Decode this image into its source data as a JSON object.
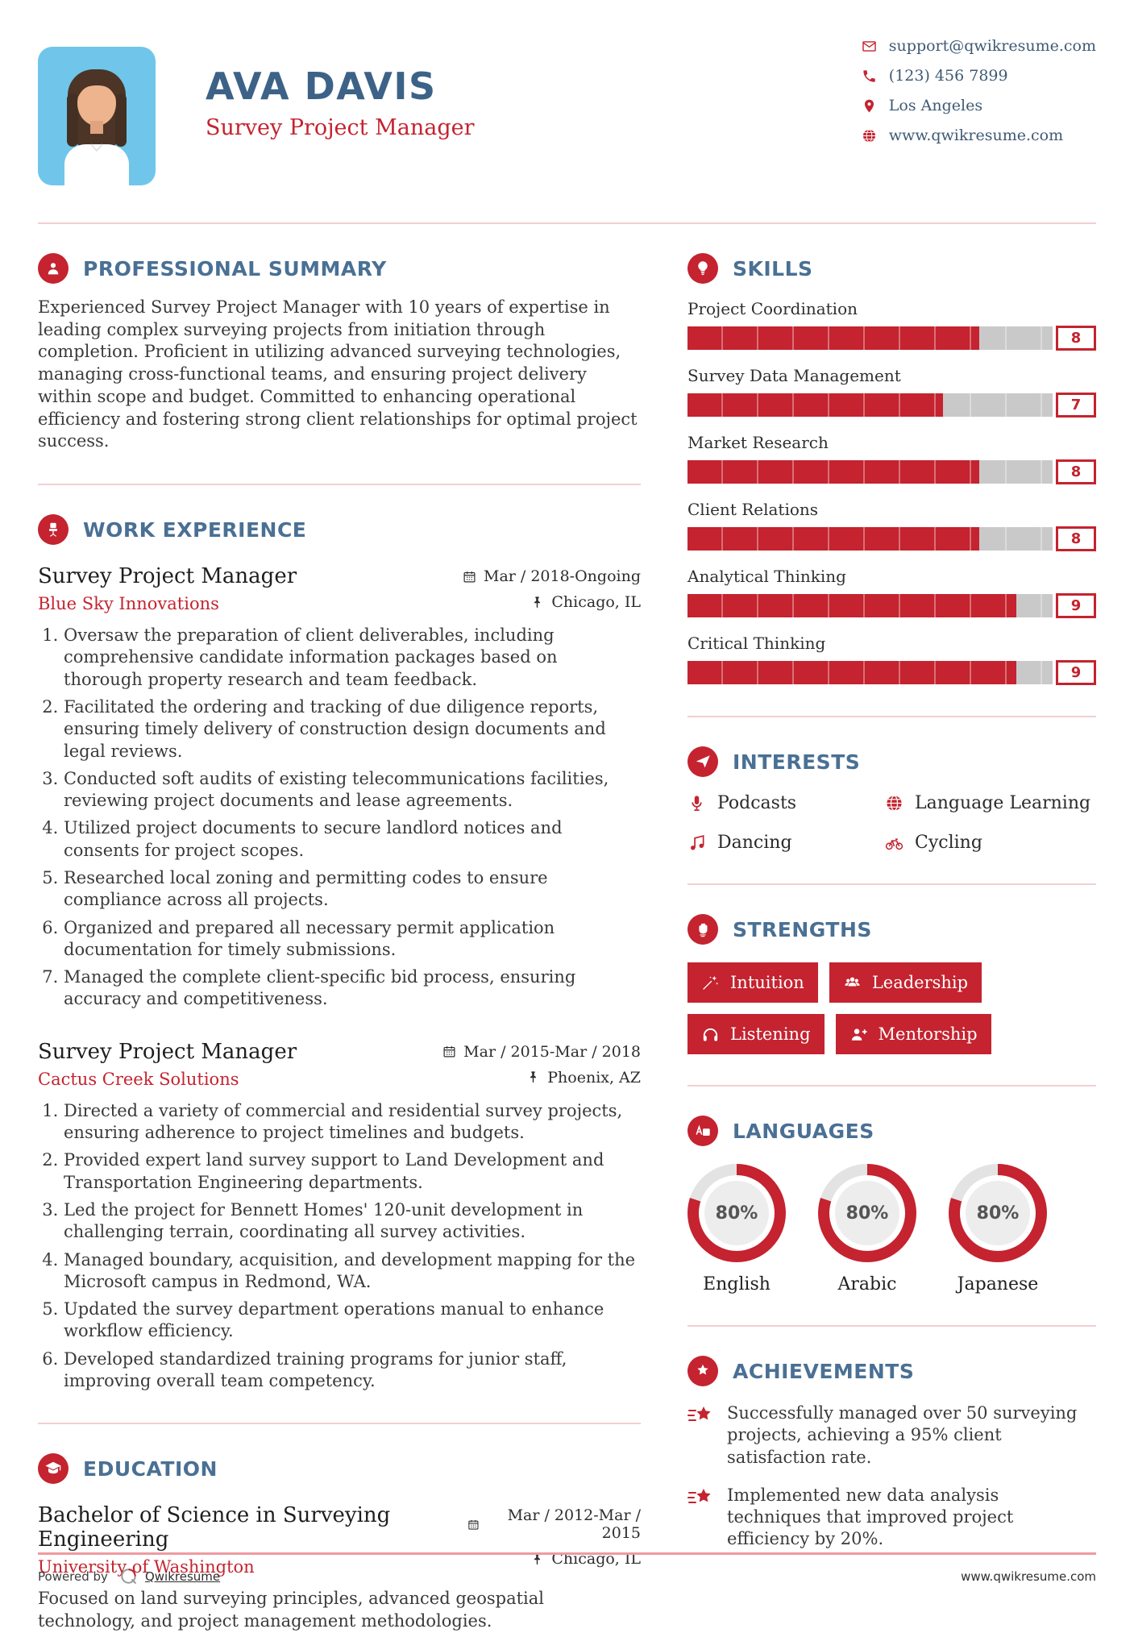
{
  "colors": {
    "accent": "#c4232f",
    "heading": "#4a7094",
    "name": "#3d6287",
    "body": "#3a3a3a",
    "track": "#c9c9c9",
    "ring_rest": "#e3e3e3",
    "divider": "#f3ced1",
    "photo_bg": "#6fc6ea"
  },
  "header": {
    "name": "AVA DAVIS",
    "title": "Survey Project Manager",
    "contacts": [
      {
        "icon": "mail-icon",
        "text": "support@qwikresume.com"
      },
      {
        "icon": "phone-icon",
        "text": "(123) 456 7899"
      },
      {
        "icon": "location-icon",
        "text": "Los Angeles"
      },
      {
        "icon": "globe-icon",
        "text": "www.qwikresume.com"
      }
    ]
  },
  "summary": {
    "heading": "PROFESSIONAL SUMMARY",
    "text": "Experienced Survey Project Manager with 10 years of expertise in leading complex surveying projects from initiation through completion. Proficient in utilizing advanced surveying technologies, managing cross-functional teams, and ensuring project delivery within scope and budget. Committed to enhancing operational efficiency and fostering strong client relationships for optimal project success."
  },
  "work": {
    "heading": "WORK EXPERIENCE",
    "jobs": [
      {
        "title": "Survey Project Manager",
        "company": "Blue Sky Innovations",
        "date": "Mar / 2018-Ongoing",
        "location": "Chicago, IL",
        "bullets": [
          "Oversaw the preparation of client deliverables, including comprehensive candidate information packages based on thorough property research and team feedback.",
          "Facilitated the ordering and tracking of due diligence reports, ensuring timely delivery of construction design documents and legal reviews.",
          "Conducted soft audits of existing telecommunications facilities, reviewing project documents and lease agreements.",
          "Utilized project documents to secure landlord notices and consents for project scopes.",
          "Researched local zoning and permitting codes to ensure compliance across all projects.",
          "Organized and prepared all necessary permit application documentation for timely submissions.",
          "Managed the complete client-specific bid process, ensuring accuracy and competitiveness."
        ]
      },
      {
        "title": "Survey Project Manager",
        "company": "Cactus Creek Solutions",
        "date": "Mar / 2015-Mar / 2018",
        "location": "Phoenix, AZ",
        "bullets": [
          "Directed a variety of commercial and residential survey projects, ensuring adherence to project timelines and budgets.",
          "Provided expert land survey support to Land Development and Transportation Engineering departments.",
          "Led the project for Bennett Homes' 120-unit development in challenging terrain, coordinating all survey activities.",
          "Managed boundary, acquisition, and development mapping for the Microsoft campus in Redmond, WA.",
          "Updated the survey department operations manual to enhance workflow efficiency.",
          "Developed standardized training programs for junior staff, improving overall team competency."
        ]
      }
    ]
  },
  "education": {
    "heading": "EDUCATION",
    "degree": "Bachelor of Science in Surveying Engineering",
    "school": "University of Washington",
    "date": "Mar / 2012-Mar / 2015",
    "location": "Chicago, IL",
    "description": "Focused on land surveying principles, advanced geospatial technology, and project management methodologies."
  },
  "skills": {
    "heading": "SKILLS",
    "scale_max": 10,
    "items": [
      {
        "label": "Project Coordination",
        "value": "8",
        "percent": 80
      },
      {
        "label": "Survey Data Management",
        "value": "7",
        "percent": 70
      },
      {
        "label": "Market Research",
        "value": "8",
        "percent": 80
      },
      {
        "label": "Client Relations",
        "value": "8",
        "percent": 80
      },
      {
        "label": "Analytical Thinking",
        "value": "9",
        "percent": 90
      },
      {
        "label": "Critical Thinking",
        "value": "9",
        "percent": 90
      }
    ]
  },
  "interests": {
    "heading": "INTERESTS",
    "items": [
      {
        "icon": "microphone-icon",
        "label": "Podcasts"
      },
      {
        "icon": "globe-icon",
        "label": "Language Learning"
      },
      {
        "icon": "music-note-icon",
        "label": "Dancing"
      },
      {
        "icon": "bicycle-icon",
        "label": "Cycling"
      }
    ]
  },
  "strengths": {
    "heading": "STRENGTHS",
    "items": [
      {
        "icon": "magic-wand-icon",
        "label": "Intuition"
      },
      {
        "icon": "users-icon",
        "label": "Leadership"
      },
      {
        "icon": "headphones-icon",
        "label": "Listening"
      },
      {
        "icon": "user-plus-icon",
        "label": "Mentorship"
      }
    ]
  },
  "languages": {
    "heading": "LANGUAGES",
    "items": [
      {
        "label": "English",
        "percent_label": "80%",
        "value": 80
      },
      {
        "label": "Arabic",
        "percent_label": "80%",
        "value": 80
      },
      {
        "label": "Japanese",
        "percent_label": "80%",
        "value": 80
      }
    ]
  },
  "achievements": {
    "heading": "ACHIEVEMENTS",
    "items": [
      "Successfully managed over 50 surveying projects, achieving a 95% client satisfaction rate.",
      "Implemented new data analysis techniques that improved project efficiency by 20%."
    ]
  },
  "footer": {
    "powered_by": "Powered by",
    "brand": "Qwikresume",
    "site": "www.qwikresume.com"
  }
}
